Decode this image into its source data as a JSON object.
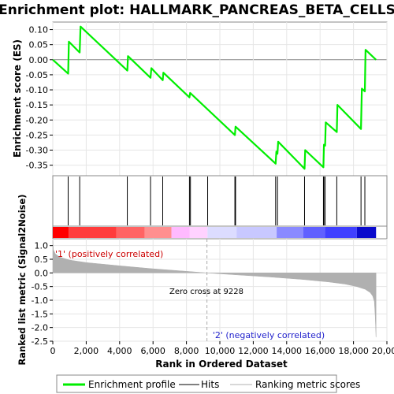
{
  "chart_data": {
    "type": "line",
    "title": "Enrichment plot: HALLMARK_PANCREAS_BETA_CELLS",
    "top_panel": {
      "ylabel": "Enrichment score (ES)",
      "ylim": [
        -0.385,
        0.125
      ],
      "yticks": [
        0.1,
        0.05,
        0.0,
        -0.05,
        -0.1,
        -0.15,
        -0.2,
        -0.25,
        -0.3,
        -0.35
      ],
      "ytick_labels": [
        "0.10",
        "0.05",
        "0.00",
        "-0.05",
        "-0.10",
        "-0.15",
        "-0.20",
        "-0.25",
        "-0.30",
        "-0.35"
      ],
      "series": [
        {
          "name": "Enrichment profile",
          "color": "#00ee00",
          "x": [
            0,
            920,
            960,
            1610,
            1660,
            4460,
            4500,
            5850,
            5900,
            6580,
            6620,
            8180,
            8220,
            10900,
            10940,
            13340,
            13380,
            13450,
            13490,
            15070,
            15110,
            16200,
            16230,
            16300,
            16340,
            17000,
            17040,
            18450,
            18500,
            18680,
            18720,
            19350
          ],
          "y": [
            0.0,
            -0.046,
            0.06,
            0.024,
            0.11,
            -0.036,
            0.012,
            -0.06,
            -0.028,
            -0.068,
            -0.043,
            -0.125,
            -0.11,
            -0.25,
            -0.222,
            -0.345,
            -0.305,
            -0.312,
            -0.272,
            -0.362,
            -0.3,
            -0.357,
            -0.282,
            -0.285,
            -0.208,
            -0.24,
            -0.15,
            -0.23,
            -0.096,
            -0.105,
            0.033,
            0.0
          ]
        }
      ]
    },
    "hits_panel": {
      "series_name": "Hits",
      "hit_positions": [
        920,
        1610,
        4460,
        5850,
        6580,
        8180,
        8240,
        9270,
        10900,
        10940,
        13340,
        13450,
        15070,
        16200,
        16230,
        16300,
        17000,
        18450,
        18680
      ]
    },
    "color_bar": {
      "segments": [
        {
          "from": 0,
          "to": 950,
          "color": "#ff0000"
        },
        {
          "from": 950,
          "to": 3800,
          "color": "#ff3c3c"
        },
        {
          "from": 3800,
          "to": 5500,
          "color": "#ff6464"
        },
        {
          "from": 5500,
          "to": 7100,
          "color": "#ff8f8f"
        },
        {
          "from": 7100,
          "to": 8200,
          "color": "#ffbaff"
        },
        {
          "from": 8200,
          "to": 9260,
          "color": "#ffd2ff"
        },
        {
          "from": 9260,
          "to": 11000,
          "color": "#dcdcff"
        },
        {
          "from": 11000,
          "to": 13400,
          "color": "#c8c8ff"
        },
        {
          "from": 13400,
          "to": 15000,
          "color": "#8a8aff"
        },
        {
          "from": 15000,
          "to": 16300,
          "color": "#6060ff"
        },
        {
          "from": 16300,
          "to": 18200,
          "color": "#4040ff"
        },
        {
          "from": 18200,
          "to": 19350,
          "color": "#0a0acc"
        }
      ]
    },
    "bottom_panel": {
      "ylabel": "Ranked list metric (Signal2Noise)",
      "xlabel": "Rank in Ordered Dataset",
      "ylim": [
        -2.5,
        1.25
      ],
      "yticks": [
        1.0,
        0.5,
        0.0,
        -0.5,
        -1.0,
        -1.5,
        -2.0,
        -2.5
      ],
      "ytick_labels": [
        "1.0",
        "0.5",
        "0.0",
        "-0.5",
        "-1.0",
        "-1.5",
        "-2.0",
        "-2.5"
      ],
      "xlim": [
        0,
        20000
      ],
      "xticks": [
        0,
        2000,
        4000,
        6000,
        8000,
        10000,
        12000,
        14000,
        16000,
        18000,
        20000
      ],
      "xtick_labels": [
        "0",
        "2,000",
        "4,000",
        "6,000",
        "8,000",
        "10,000",
        "12,000",
        "14,000",
        "16,000",
        "18,000",
        "20,000"
      ],
      "series": [
        {
          "name": "Ranking metric scores",
          "color": "#b0b0b0",
          "x": [
            0,
            40,
            150,
            400,
            1000,
            2000,
            4000,
            6000,
            8000,
            9228,
            11000,
            13000,
            15000,
            16500,
            17500,
            18200,
            18700,
            19000,
            19150,
            19250,
            19300,
            19350
          ],
          "y": [
            1.2,
            0.85,
            0.7,
            0.58,
            0.47,
            0.38,
            0.26,
            0.15,
            0.06,
            0.0,
            -0.07,
            -0.15,
            -0.24,
            -0.33,
            -0.41,
            -0.5,
            -0.6,
            -0.72,
            -0.85,
            -1.05,
            -1.6,
            -2.35
          ]
        }
      ],
      "annotations": {
        "zero_cross": "Zero cross at 9228",
        "positive": "'1' (positively correlated)",
        "negative": "'2' (negatively correlated)"
      },
      "zero_cross_x": 9228
    },
    "legend": {
      "placement": "bottom",
      "entries": [
        {
          "label": "Enrichment profile",
          "color": "#00ee00"
        },
        {
          "label": "Hits",
          "color": "#000000"
        },
        {
          "label": "Ranking metric scores",
          "color": "#b0b0b0"
        }
      ]
    }
  }
}
